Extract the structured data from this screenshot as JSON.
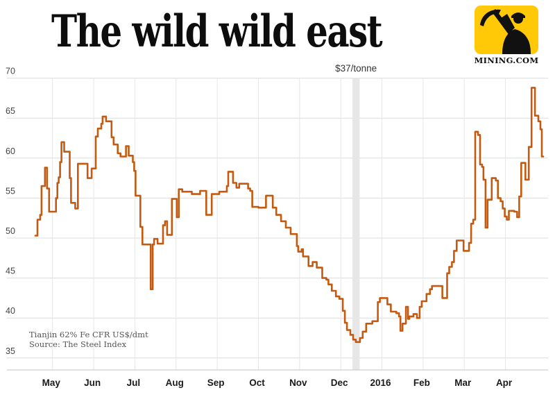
{
  "title": "The wild wild east",
  "logo": {
    "caption": "MINING.COM",
    "bg_color": "#ffc907",
    "fg_color": "#111111"
  },
  "legend": {
    "line1": "Tianjin 62% Fe CFR US$/dmt",
    "line2": "Source: The Steel Index"
  },
  "colors": {
    "line": "#c45a10",
    "grid_h": "#dcdcdc",
    "grid_v": "#e6e6e6",
    "axis": "#c2c2c2",
    "band": "#e7e7e7",
    "y_label": "#444444",
    "month_label": "#1a1a1a",
    "annotation": "#333333"
  },
  "chart_data": {
    "type": "line",
    "step": true,
    "title": "The wild wild east",
    "series_name": "Tianjin 62% Fe CFR US$/dmt",
    "source": "The Steel Index",
    "unit": "US$/dmt",
    "x_labels": [
      "May",
      "Jun",
      "Jul",
      "Aug",
      "Sep",
      "Oct",
      "Nov",
      "Dec",
      "2016",
      "Feb",
      "Mar",
      "Apr"
    ],
    "y_ticks": [
      70,
      65,
      60,
      55,
      50,
      45,
      40,
      35
    ],
    "ylim": [
      35,
      70
    ],
    "grid": true,
    "annotation": {
      "label": "$37/tonne",
      "day": 233.6
    },
    "highlight_band": {
      "day_start": 231,
      "day_end": 236.3
    },
    "x_unit": "days from chart start (mid-April 2015), month gridlines at day 12.5 + 30k",
    "points": [
      [
        0,
        50.3
      ],
      [
        1.5,
        52.3
      ],
      [
        3.5,
        52.9
      ],
      [
        4.5,
        56.5
      ],
      [
        7,
        58.8
      ],
      [
        8.5,
        56.2
      ],
      [
        10,
        53.3
      ],
      [
        15,
        55
      ],
      [
        16,
        56.9
      ],
      [
        17,
        57.6
      ],
      [
        18,
        59.5
      ],
      [
        19,
        62
      ],
      [
        21,
        60.8
      ],
      [
        25,
        57.5
      ],
      [
        26,
        54.4
      ],
      [
        29,
        53.7
      ],
      [
        31,
        59.3
      ],
      [
        38,
        57.5
      ],
      [
        41,
        58.7
      ],
      [
        44,
        62.7
      ],
      [
        45.5,
        63.7
      ],
      [
        48,
        64.3
      ],
      [
        49,
        65.2
      ],
      [
        51.5,
        64.6
      ],
      [
        55.5,
        62.6
      ],
      [
        57,
        61.7
      ],
      [
        60,
        60.6
      ],
      [
        62,
        60.2
      ],
      [
        66,
        61.5
      ],
      [
        68,
        60.3
      ],
      [
        71,
        59.5
      ],
      [
        72,
        58.4
      ],
      [
        73,
        55.3
      ],
      [
        76.5,
        51.4
      ],
      [
        78,
        49.2
      ],
      [
        84,
        43.6
      ],
      [
        85.5,
        49.2
      ],
      [
        86.5,
        49.9
      ],
      [
        89,
        49.3
      ],
      [
        93,
        51.6
      ],
      [
        94.5,
        52.1
      ],
      [
        96,
        50.4
      ],
      [
        99.5,
        54.9
      ],
      [
        103,
        52.6
      ],
      [
        104.5,
        56.1
      ],
      [
        107,
        55.8
      ],
      [
        114,
        55.5
      ],
      [
        120,
        55.9
      ],
      [
        124.5,
        52.9
      ],
      [
        128.5,
        55.5
      ],
      [
        134,
        55.8
      ],
      [
        139.5,
        56.5
      ],
      [
        140.5,
        58.3
      ],
      [
        144,
        56.9
      ],
      [
        146.5,
        56.3
      ],
      [
        148.5,
        56.8
      ],
      [
        155,
        56.2
      ],
      [
        156.5,
        55.9
      ],
      [
        158,
        53.9
      ],
      [
        162.5,
        53.8
      ],
      [
        168,
        55.3
      ],
      [
        173,
        53.8
      ],
      [
        175.5,
        52.9
      ],
      [
        179,
        52.1
      ],
      [
        182.5,
        51.3
      ],
      [
        186,
        50.5
      ],
      [
        190.5,
        49
      ],
      [
        191.5,
        48.3
      ],
      [
        194,
        48.6
      ],
      [
        195,
        47.7
      ],
      [
        199,
        46.5
      ],
      [
        202,
        47
      ],
      [
        205,
        46.3
      ],
      [
        209,
        45
      ],
      [
        212,
        44.8
      ],
      [
        213.5,
        44.2
      ],
      [
        216,
        43.4
      ],
      [
        219,
        42.7
      ],
      [
        221.5,
        42.4
      ],
      [
        224,
        40.9
      ],
      [
        225.5,
        39.4
      ],
      [
        227,
        38.5
      ],
      [
        229.5,
        37.9
      ],
      [
        231.5,
        37.3
      ],
      [
        233.5,
        37
      ],
      [
        236.5,
        37.5
      ],
      [
        238.5,
        38.3
      ],
      [
        241,
        39.3
      ],
      [
        245.5,
        39.6
      ],
      [
        249.5,
        42
      ],
      [
        251,
        42.5
      ],
      [
        256.5,
        41.7
      ],
      [
        259,
        40.8
      ],
      [
        263,
        40.6
      ],
      [
        265,
        40.2
      ],
      [
        266,
        38.4
      ],
      [
        267.5,
        39.3
      ],
      [
        270,
        41.4
      ],
      [
        271.5,
        39.9
      ],
      [
        272.5,
        40.2
      ],
      [
        275.5,
        40.5
      ],
      [
        278,
        40
      ],
      [
        280,
        41.4
      ],
      [
        281.5,
        42.1
      ],
      [
        285,
        43
      ],
      [
        287.5,
        43.6
      ],
      [
        289,
        44
      ],
      [
        296.5,
        42.5
      ],
      [
        300,
        45.6
      ],
      [
        301.5,
        46.4
      ],
      [
        303.5,
        47
      ],
      [
        305,
        48.4
      ],
      [
        307,
        49.7
      ],
      [
        312,
        48.4
      ],
      [
        316,
        49.4
      ],
      [
        317.5,
        51.8
      ],
      [
        319,
        52.3
      ],
      [
        320.5,
        63.3
      ],
      [
        322.5,
        62.9
      ],
      [
        324,
        59.2
      ],
      [
        325.5,
        58.9
      ],
      [
        326.5,
        57.3
      ],
      [
        328,
        51.3
      ],
      [
        329.5,
        54.8
      ],
      [
        332.5,
        57.5
      ],
      [
        335.5,
        57.2
      ],
      [
        337,
        55
      ],
      [
        339,
        54.6
      ],
      [
        340.5,
        53.7
      ],
      [
        342,
        52.7
      ],
      [
        343.5,
        52.3
      ],
      [
        345,
        53.4
      ],
      [
        349,
        53.3
      ],
      [
        351,
        52.6
      ],
      [
        352.5,
        55.2
      ],
      [
        354,
        59.4
      ],
      [
        357,
        57.3
      ],
      [
        359.5,
        61.4
      ],
      [
        361.5,
        68.8
      ],
      [
        364,
        65.3
      ],
      [
        366.5,
        64.6
      ],
      [
        368,
        63.6
      ],
      [
        369,
        60.2
      ],
      [
        370,
        60.2
      ]
    ]
  }
}
